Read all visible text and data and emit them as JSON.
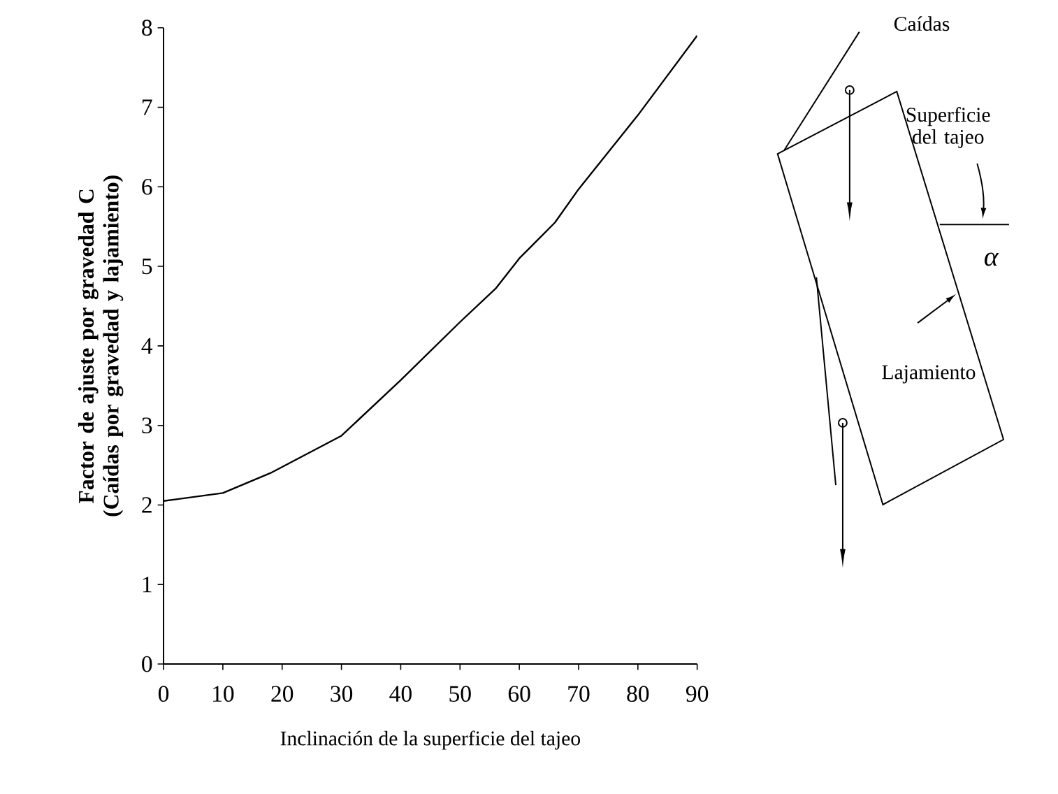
{
  "chart_data": {
    "type": "line",
    "xlabel": "Inclinación de la superficie del tajeo",
    "ylabel": "Factor de ajuste por gravedad C\n(Caídas por gravedad y lajamiento)",
    "x": [
      0,
      10,
      18,
      30,
      40,
      50,
      56,
      60,
      66,
      70,
      80,
      90
    ],
    "series": [
      {
        "color": "#000000",
        "values": [
          2.05,
          2.15,
          2.4,
          2.87,
          3.57,
          4.3,
          4.72,
          5.1,
          5.55,
          5.97,
          6.9,
          7.9
        ]
      }
    ],
    "xlim": [
      0,
      90
    ],
    "xticks": [
      0,
      10,
      20,
      30,
      40,
      50,
      60,
      70,
      80,
      90
    ],
    "ylim": [
      0,
      8
    ],
    "yticks": [
      0,
      1,
      2,
      3,
      4,
      5,
      6,
      7,
      8
    ],
    "grid": false,
    "marker": "none",
    "line_style": "solid",
    "annotations": [
      "Caídas",
      "Superficie del tajeo",
      "α",
      "Lajamiento"
    ]
  }
}
